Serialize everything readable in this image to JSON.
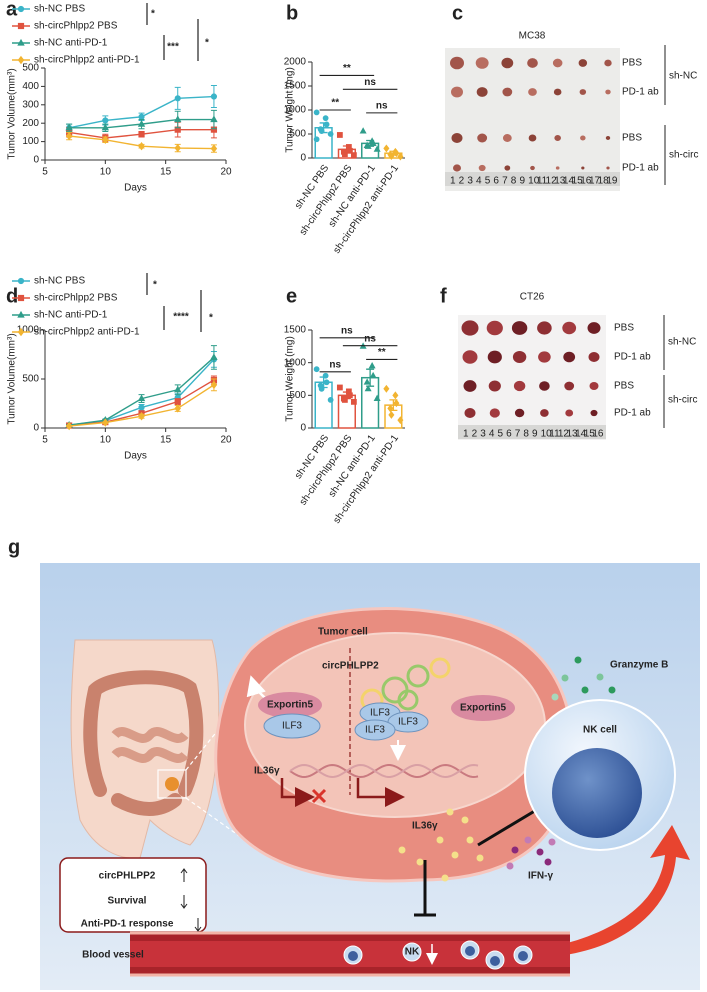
{
  "chart_data": [
    {
      "type": "line",
      "panel_label": "a",
      "xlabel": "Days",
      "ylabel": "Tumor Volume(mm³)",
      "x": [
        7,
        10,
        13,
        16,
        19
      ],
      "xlim": [
        5,
        20
      ],
      "xticks": [
        5,
        10,
        15,
        20
      ],
      "ylim": [
        0,
        500
      ],
      "yticks": [
        0,
        100,
        200,
        300,
        400,
        500
      ],
      "series": [
        {
          "name": "sh-NC PBS",
          "color": "#3ab4c8",
          "values": [
            175,
            215,
            235,
            335,
            345
          ],
          "errors": [
            20,
            25,
            20,
            60,
            60
          ]
        },
        {
          "name": "sh-circPhlpp2 PBS",
          "color": "#e0533f",
          "values": [
            150,
            120,
            140,
            165,
            165
          ],
          "errors": [
            25,
            20,
            15,
            40,
            45
          ]
        },
        {
          "name": "sh-NC anti-PD-1",
          "color": "#2f9d8a",
          "values": [
            175,
            175,
            195,
            220,
            220
          ],
          "errors": [
            20,
            20,
            25,
            45,
            50
          ]
        },
        {
          "name": "sh-circPhlpp2 anti-PD-1",
          "color": "#f2b431",
          "values": [
            130,
            110,
            75,
            65,
            62
          ],
          "errors": [
            20,
            15,
            10,
            20,
            20
          ]
        }
      ],
      "annotations": [
        "*",
        "***",
        "*"
      ]
    },
    {
      "type": "bar",
      "panel_label": "b",
      "ylabel": "Tumor Weight (mg)",
      "categories": [
        "sh-NC PBS",
        "sh-circPhlpp2 PBS",
        "sh-NC anti-PD-1",
        "sh-circPhlpp2 anti-PD-1"
      ],
      "values": [
        630,
        180,
        305,
        100
      ],
      "errors": [
        100,
        70,
        60,
        40
      ],
      "points": [
        [
          950,
          830,
          700,
          600,
          560,
          500,
          390
        ],
        [
          480,
          230,
          150,
          130,
          80,
          60
        ],
        [
          560,
          350,
          300,
          260,
          240,
          180
        ],
        [
          200,
          130,
          100,
          70,
          40,
          30
        ]
      ],
      "colors": [
        "#3ab4c8",
        "#e0533f",
        "#2f9d8a",
        "#f2b431"
      ],
      "ylim": [
        0,
        2000
      ],
      "yticks": [
        0,
        500,
        1000,
        1500,
        2000
      ],
      "annotations": [
        "**",
        "ns",
        "**",
        "ns"
      ]
    },
    {
      "type": "line",
      "panel_label": "d",
      "xlabel": "Days",
      "ylabel": "Tumor Volume(mm³)",
      "x": [
        7,
        10,
        13,
        16,
        19
      ],
      "xlim": [
        5,
        20
      ],
      "xticks": [
        5,
        10,
        15,
        20
      ],
      "ylim": [
        0,
        1000
      ],
      "yticks": [
        0,
        500,
        1000
      ],
      "series": [
        {
          "name": "sh-NC PBS",
          "color": "#3ab4c8",
          "values": [
            30,
            75,
            210,
            310,
            700
          ],
          "errors": [
            5,
            10,
            30,
            40,
            80
          ]
        },
        {
          "name": "sh-circPhlpp2 PBS",
          "color": "#e0533f",
          "values": [
            25,
            60,
            150,
            270,
            490
          ],
          "errors": [
            5,
            8,
            20,
            30,
            40
          ]
        },
        {
          "name": "sh-NC anti-PD-1",
          "color": "#2f9d8a",
          "values": [
            30,
            80,
            300,
            390,
            720
          ],
          "errors": [
            5,
            10,
            40,
            50,
            120
          ]
        },
        {
          "name": "sh-circPhlpp2 anti-PD-1",
          "color": "#f2b431",
          "values": [
            20,
            55,
            120,
            200,
            440
          ],
          "errors": [
            5,
            8,
            20,
            30,
            60
          ]
        }
      ],
      "annotations": [
        "*",
        "****",
        "*"
      ]
    },
    {
      "type": "bar",
      "panel_label": "e",
      "ylabel": "Tumor Weight (mg)",
      "categories": [
        "sh-NC PBS",
        "sh-circPhlpp2 PBS",
        "sh-NC anti-PD-1",
        "sh-circPhlpp2 anti-PD-1"
      ],
      "values": [
        700,
        500,
        770,
        350
      ],
      "errors": [
        80,
        50,
        130,
        80
      ],
      "points": [
        [
          900,
          800,
          700,
          650,
          600,
          430
        ],
        [
          620,
          560,
          500,
          450,
          430,
          400
        ],
        [
          1250,
          950,
          800,
          700,
          600,
          450
        ],
        [
          600,
          500,
          380,
          300,
          200,
          120
        ]
      ],
      "colors": [
        "#3ab4c8",
        "#e0533f",
        "#2f9d8a",
        "#f2b431"
      ],
      "ylim": [
        0,
        1500
      ],
      "yticks": [
        0,
        500,
        1000,
        1500
      ],
      "annotations": [
        "ns",
        "ns",
        "ns",
        "**"
      ]
    }
  ],
  "photo_panels": [
    {
      "panel_label": "c",
      "title": "MC38",
      "rows": [
        "PBS",
        "PD-1 ab",
        "PBS",
        "PD-1 ab"
      ],
      "groups": [
        "sh-NC",
        "sh-circ"
      ],
      "ruler_labels": [
        "1",
        "2",
        "3",
        "4",
        "5",
        "6",
        "7",
        "8",
        "9",
        "10",
        "11",
        "12",
        "13",
        "14",
        "15",
        "16",
        "17",
        "18",
        "19"
      ]
    },
    {
      "panel_label": "f",
      "title": "CT26",
      "rows": [
        "PBS",
        "PD-1 ab",
        "PBS",
        "PD-1 ab"
      ],
      "groups": [
        "sh-NC",
        "sh-circ"
      ],
      "ruler_labels": [
        "1",
        "2",
        "3",
        "4",
        "5",
        "6",
        "7",
        "8",
        "9",
        "10",
        "11",
        "12",
        "13",
        "14",
        "15",
        "16"
      ]
    }
  ],
  "diagram": {
    "panel_label": "g",
    "tumor_cell": "Tumor cell",
    "circrna": "circPHLPP2",
    "exportin_left": "Exportin5",
    "ilf3_left": "ILF3",
    "ilf3_a": "ILF3",
    "ilf3_b": "ILF3",
    "ilf3_c": "ILF3",
    "exportin_right": "Exportin5",
    "il36_gene": "IL36γ",
    "il36_secreted": "IL36γ",
    "granzyme": "Granzyme B",
    "nk_cell": "NK cell",
    "ifn": "IFN-γ",
    "blood_vessel": "Blood vessel",
    "nk_small": "NK",
    "summary": [
      "circPHLPP2",
      "Survival",
      "Anti-PD-1 response"
    ]
  }
}
